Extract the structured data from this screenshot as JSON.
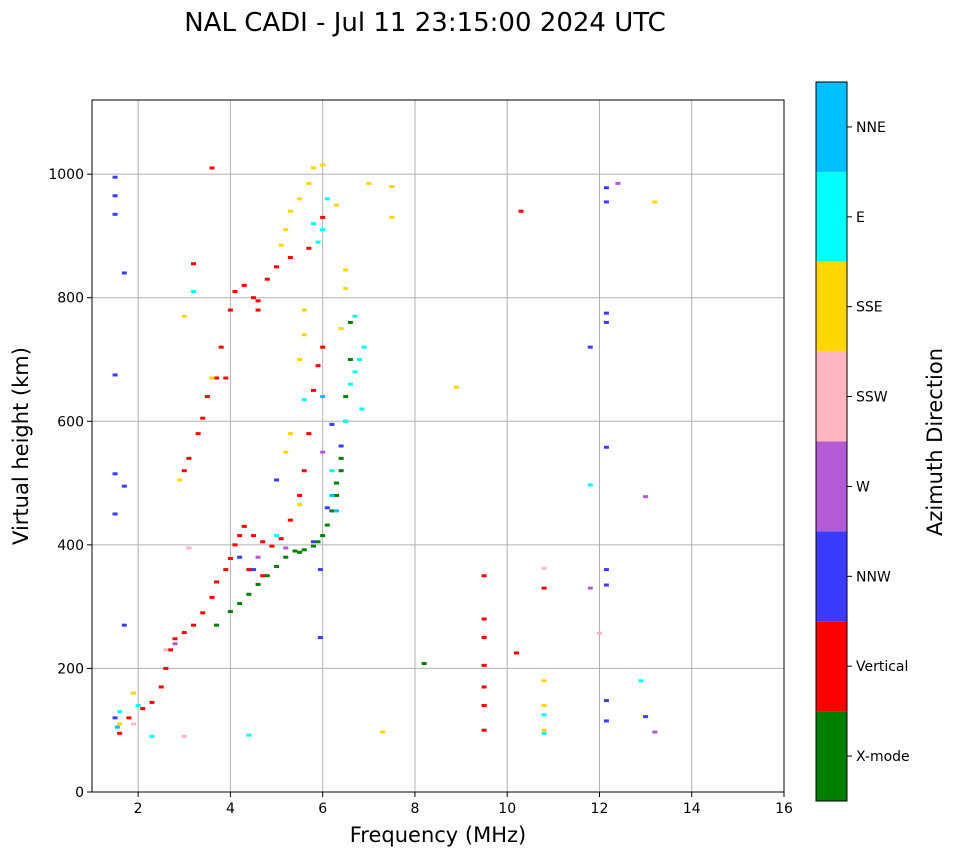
{
  "chart_data": {
    "type": "scatter",
    "title": "NAL CADI - Jul 11 23:15:00 2024 UTC",
    "xlabel": "Frequency (MHz)",
    "ylabel": "Virtual height (km)",
    "xlim": [
      1,
      16
    ],
    "ylim": [
      0,
      1120
    ],
    "xticks": [
      2,
      4,
      6,
      8,
      10,
      12,
      14,
      16
    ],
    "yticks": [
      0,
      200,
      400,
      600,
      800,
      1000
    ],
    "grid": true,
    "colorbar": {
      "label": "Azimuth Direction",
      "categories": [
        {
          "name": "X-mode",
          "color": "#008000"
        },
        {
          "name": "Vertical",
          "color": "#ff0000"
        },
        {
          "name": "NNW",
          "color": "#3b3bff"
        },
        {
          "name": "W",
          "color": "#b35bd6"
        },
        {
          "name": "SSW",
          "color": "#ffb6c1"
        },
        {
          "name": "SSE",
          "color": "#ffd700"
        },
        {
          "name": "E",
          "color": "#00ffff"
        },
        {
          "name": "NNE",
          "color": "#00bfff"
        }
      ]
    },
    "series": [
      {
        "name": "X-mode",
        "points": [
          [
            4.0,
            292
          ],
          [
            4.2,
            305
          ],
          [
            4.4,
            320
          ],
          [
            4.6,
            336
          ],
          [
            4.8,
            350
          ],
          [
            5.0,
            365
          ],
          [
            5.2,
            380
          ],
          [
            5.4,
            390
          ],
          [
            5.6,
            392
          ],
          [
            5.8,
            398
          ],
          [
            6.0,
            415
          ],
          [
            6.1,
            432
          ],
          [
            6.2,
            455
          ],
          [
            6.4,
            520
          ],
          [
            6.4,
            540
          ],
          [
            6.5,
            600
          ],
          [
            6.5,
            640
          ],
          [
            6.6,
            700
          ],
          [
            6.6,
            760
          ],
          [
            6.3,
            500
          ],
          [
            3.7,
            270
          ],
          [
            8.2,
            208
          ],
          [
            5.5,
            388
          ],
          [
            5.9,
            405
          ],
          [
            6.3,
            480
          ]
        ]
      },
      {
        "name": "Vertical",
        "points": [
          [
            1.6,
            95
          ],
          [
            1.8,
            120
          ],
          [
            2.1,
            135
          ],
          [
            2.3,
            145
          ],
          [
            2.5,
            170
          ],
          [
            2.6,
            200
          ],
          [
            2.7,
            230
          ],
          [
            2.8,
            248
          ],
          [
            3.0,
            258
          ],
          [
            3.2,
            270
          ],
          [
            3.4,
            290
          ],
          [
            3.6,
            315
          ],
          [
            3.7,
            340
          ],
          [
            3.9,
            360
          ],
          [
            4.0,
            378
          ],
          [
            4.1,
            400
          ],
          [
            4.2,
            415
          ],
          [
            4.3,
            430
          ],
          [
            4.5,
            415
          ],
          [
            4.7,
            405
          ],
          [
            4.9,
            398
          ],
          [
            5.1,
            410
          ],
          [
            5.3,
            440
          ],
          [
            5.5,
            480
          ],
          [
            5.6,
            520
          ],
          [
            5.7,
            580
          ],
          [
            5.8,
            650
          ],
          [
            5.9,
            690
          ],
          [
            6.0,
            720
          ],
          [
            3.0,
            520
          ],
          [
            3.1,
            540
          ],
          [
            3.3,
            580
          ],
          [
            3.4,
            605
          ],
          [
            3.5,
            640
          ],
          [
            3.7,
            670
          ],
          [
            3.8,
            720
          ],
          [
            4.0,
            780
          ],
          [
            4.1,
            810
          ],
          [
            4.3,
            820
          ],
          [
            4.5,
            800
          ],
          [
            4.6,
            795
          ],
          [
            4.8,
            830
          ],
          [
            5.0,
            850
          ],
          [
            5.3,
            865
          ],
          [
            5.7,
            880
          ],
          [
            6.0,
            930
          ],
          [
            3.6,
            1010
          ],
          [
            3.2,
            855
          ],
          [
            3.9,
            670
          ],
          [
            4.6,
            780
          ],
          [
            9.5,
            100
          ],
          [
            9.5,
            140
          ],
          [
            9.5,
            170
          ],
          [
            9.5,
            205
          ],
          [
            9.5,
            250
          ],
          [
            9.5,
            280
          ],
          [
            9.5,
            350
          ],
          [
            10.2,
            225
          ],
          [
            10.8,
            330
          ],
          [
            10.3,
            940
          ],
          [
            4.7,
            350
          ],
          [
            4.4,
            360
          ]
        ]
      },
      {
        "name": "NNW",
        "points": [
          [
            1.5,
            120
          ],
          [
            1.5,
            450
          ],
          [
            1.5,
            515
          ],
          [
            1.5,
            675
          ],
          [
            1.5,
            935
          ],
          [
            1.5,
            965
          ],
          [
            1.5,
            995
          ],
          [
            1.7,
            840
          ],
          [
            1.7,
            495
          ],
          [
            1.7,
            270
          ],
          [
            5.95,
            250
          ],
          [
            5.95,
            360
          ],
          [
            6.4,
            560
          ],
          [
            6.2,
            595
          ],
          [
            12.15,
            115
          ],
          [
            12.15,
            148
          ],
          [
            12.15,
            335
          ],
          [
            12.15,
            360
          ],
          [
            12.15,
            558
          ],
          [
            12.15,
            760
          ],
          [
            12.15,
            775
          ],
          [
            12.15,
            955
          ],
          [
            12.15,
            978
          ],
          [
            11.8,
            720
          ],
          [
            13.0,
            122
          ],
          [
            4.2,
            380
          ],
          [
            4.5,
            360
          ],
          [
            5.8,
            405
          ],
          [
            6.1,
            460
          ],
          [
            5.0,
            505
          ]
        ]
      },
      {
        "name": "W",
        "points": [
          [
            12.4,
            985
          ],
          [
            13.0,
            478
          ],
          [
            13.2,
            97
          ],
          [
            6.0,
            550
          ],
          [
            2.8,
            240
          ],
          [
            4.6,
            380
          ],
          [
            5.2,
            395
          ],
          [
            11.8,
            330
          ]
        ]
      },
      {
        "name": "SSW",
        "points": [
          [
            10.8,
            362
          ],
          [
            12.0,
            257
          ],
          [
            2.6,
            230
          ],
          [
            3.0,
            90
          ],
          [
            3.1,
            395
          ],
          [
            1.9,
            110
          ]
        ]
      },
      {
        "name": "SSE",
        "points": [
          [
            1.6,
            110
          ],
          [
            1.9,
            160
          ],
          [
            2.9,
            505
          ],
          [
            3.0,
            770
          ],
          [
            3.6,
            670
          ],
          [
            5.1,
            885
          ],
          [
            5.2,
            910
          ],
          [
            5.3,
            940
          ],
          [
            5.5,
            960
          ],
          [
            5.7,
            985
          ],
          [
            5.8,
            1010
          ],
          [
            6.0,
            1015
          ],
          [
            6.3,
            950
          ],
          [
            6.5,
            845
          ],
          [
            6.5,
            815
          ],
          [
            7.0,
            985
          ],
          [
            7.5,
            980
          ],
          [
            7.5,
            930
          ],
          [
            8.9,
            655
          ],
          [
            10.8,
            100
          ],
          [
            10.8,
            140
          ],
          [
            10.8,
            180
          ],
          [
            13.2,
            955
          ],
          [
            5.5,
            700
          ],
          [
            5.6,
            740
          ],
          [
            5.6,
            780
          ],
          [
            5.3,
            580
          ],
          [
            5.2,
            550
          ],
          [
            5.5,
            465
          ],
          [
            6.4,
            750
          ],
          [
            7.3,
            97
          ]
        ]
      },
      {
        "name": "E",
        "points": [
          [
            1.6,
            130
          ],
          [
            2.0,
            140
          ],
          [
            2.3,
            90
          ],
          [
            4.4,
            92
          ],
          [
            6.2,
            520
          ],
          [
            6.5,
            600
          ],
          [
            6.6,
            660
          ],
          [
            6.7,
            680
          ],
          [
            6.8,
            700
          ],
          [
            6.9,
            720
          ],
          [
            6.85,
            620
          ],
          [
            6.7,
            770
          ],
          [
            5.9,
            890
          ],
          [
            5.8,
            920
          ],
          [
            12.9,
            180
          ],
          [
            11.8,
            497
          ],
          [
            10.8,
            95
          ],
          [
            10.8,
            125
          ],
          [
            3.2,
            810
          ],
          [
            6.1,
            960
          ],
          [
            6.0,
            910
          ],
          [
            5.0,
            415
          ],
          [
            5.6,
            635
          ]
        ]
      },
      {
        "name": "NNE",
        "points": [
          [
            1.55,
            105
          ],
          [
            6.0,
            640
          ],
          [
            6.2,
            480
          ],
          [
            6.3,
            455
          ]
        ]
      }
    ]
  }
}
